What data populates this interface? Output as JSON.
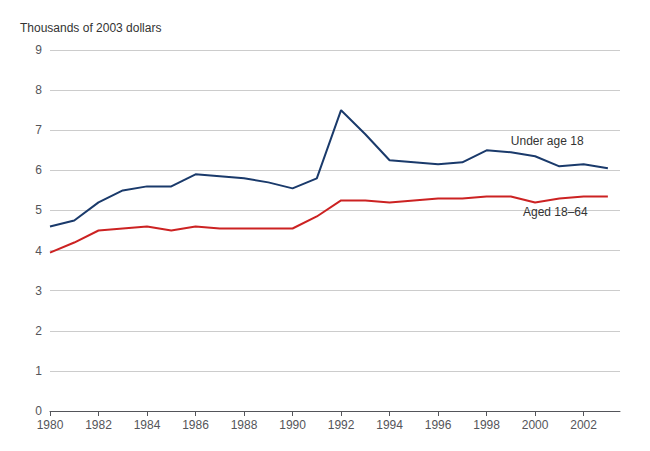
{
  "chart_data": {
    "type": "line",
    "y_label": "Thousands of 2003 dollars",
    "x": [
      1980,
      1981,
      1982,
      1983,
      1984,
      1985,
      1986,
      1987,
      1988,
      1989,
      1990,
      1991,
      1992,
      1993,
      1994,
      1995,
      1996,
      1997,
      1998,
      1999,
      2000,
      2001,
      2002,
      2003
    ],
    "series": [
      {
        "name": "Under age 18",
        "color": "#1a3a6b",
        "values": [
          4.6,
          4.75,
          5.2,
          5.5,
          5.6,
          5.6,
          5.9,
          5.85,
          5.8,
          5.7,
          5.55,
          5.8,
          7.5,
          6.9,
          6.25,
          6.2,
          6.15,
          6.2,
          6.5,
          6.45,
          6.35,
          6.1,
          6.15,
          6.05
        ],
        "label_x": 1999.0,
        "label_y": 6.72
      },
      {
        "name": "Aged 18–64",
        "color": "#cc2222",
        "values": [
          3.95,
          4.2,
          4.5,
          4.55,
          4.6,
          4.5,
          4.6,
          4.55,
          4.55,
          4.55,
          4.55,
          4.85,
          5.25,
          5.25,
          5.2,
          5.25,
          5.3,
          5.3,
          5.35,
          5.35,
          5.2,
          5.3,
          5.35,
          5.35
        ],
        "label_x": 1999.5,
        "label_y": 4.95
      }
    ],
    "xlim": [
      1980,
      2003.5
    ],
    "xticks": [
      1980,
      1982,
      1984,
      1986,
      1988,
      1990,
      1992,
      1994,
      1996,
      1998,
      2000,
      2002
    ],
    "ylim": [
      0,
      9
    ],
    "yticks": [
      0,
      1,
      2,
      3,
      4,
      5,
      6,
      7,
      8,
      9
    ],
    "grid": "y"
  }
}
